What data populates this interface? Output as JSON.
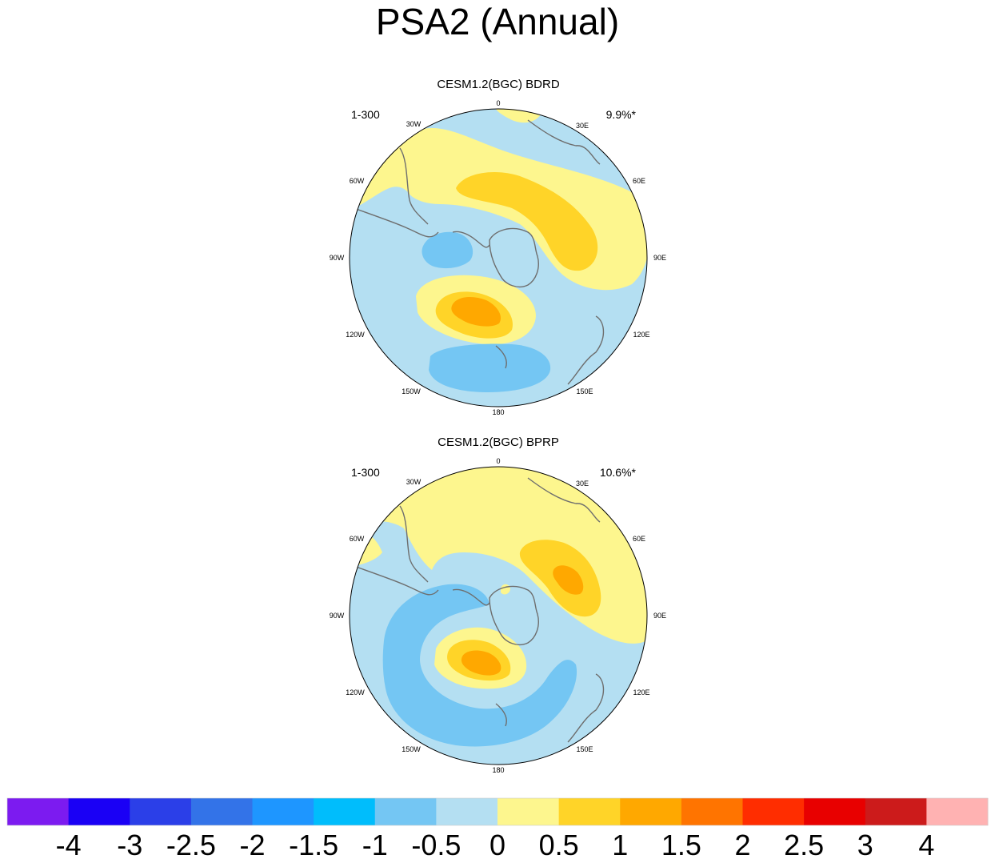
{
  "chart_data": {
    "type": "contour-map",
    "title": "PSA2 (Annual)",
    "projection": "south-polar-stereographic",
    "longitude_labels": [
      "0",
      "30E",
      "60E",
      "90E",
      "120E",
      "150E",
      "180",
      "150W",
      "120W",
      "90W",
      "60W",
      "30W"
    ],
    "panels": [
      {
        "title": "CESM1.2(BGC) BDRD",
        "years": "1-300",
        "variance_explained": "9.9%*",
        "features": [
          {
            "kind": "positive",
            "level": 1.0,
            "location": "South Atlantic to Indian sector, 30E-75E"
          },
          {
            "kind": "positive",
            "level": 1.5,
            "location": "Amundsen/Ross Sea sector, near 120W-150W"
          },
          {
            "kind": "negative",
            "level": -0.5,
            "location": "Drake Passage / Bellingshausen Sea"
          },
          {
            "kind": "negative",
            "level": -0.5,
            "location": "South Pacific near 160E-150W"
          }
        ]
      },
      {
        "title": "CESM1.2(BGC) BPRP",
        "years": "1-300",
        "variance_explained": "10.6%*",
        "features": [
          {
            "kind": "positive",
            "level": 1.5,
            "location": "Indian Ocean sector near 60E"
          },
          {
            "kind": "positive",
            "level": 1.5,
            "location": "Amundsen/Ross Sea sector, near 120W-150W"
          },
          {
            "kind": "negative",
            "level": -0.5,
            "location": "ring from South Pacific to Drake Passage"
          },
          {
            "kind": "negative",
            "level": -0.5,
            "location": "south of Australia near 120E"
          }
        ]
      }
    ],
    "colorbar": {
      "levels": [
        "-4",
        "-3",
        "-2.5",
        "-2",
        "-1.5",
        "-1",
        "-0.5",
        "0",
        "0.5",
        "1",
        "1.5",
        "2",
        "2.5",
        "3",
        "4"
      ],
      "colors": [
        "#7c1bf0",
        "#1a00f5",
        "#2b3fe8",
        "#3373e8",
        "#1e96ff",
        "#00bdfc",
        "#74c6f3",
        "#b4dff2",
        "#fdf68e",
        "#ffd428",
        "#ffa800",
        "#ff7400",
        "#ff2d00",
        "#e80000",
        "#cc1b1b",
        "#ffb2b2"
      ]
    }
  }
}
